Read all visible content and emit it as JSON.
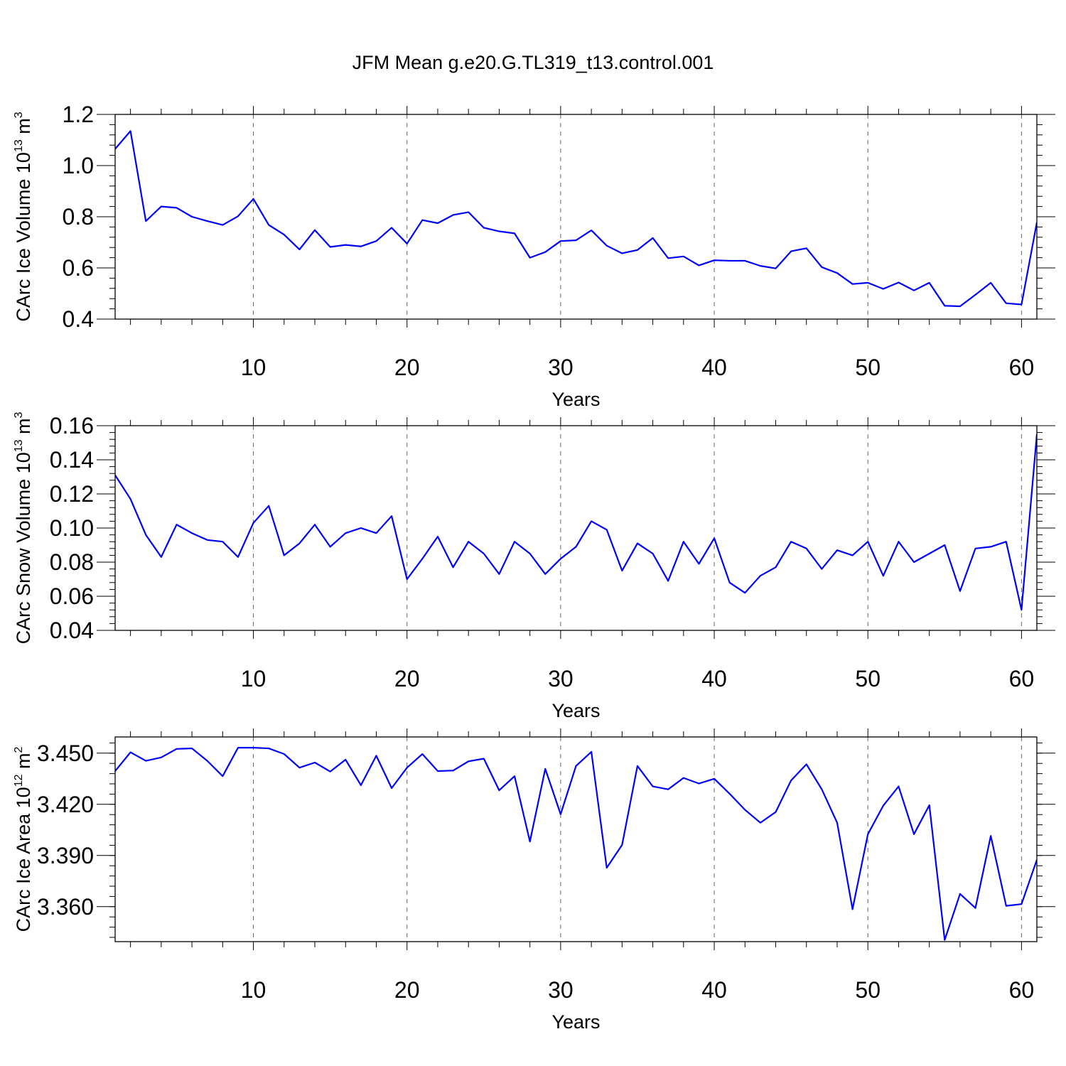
{
  "title": "JFM Mean g.e20.G.TL319_t13.control.001",
  "line_color": "#0000ff",
  "chart_data": [
    {
      "type": "line",
      "ylabel": "CArc Ice Volume",
      "ylabel_unit": "10",
      "ylabel_unit_exp": "13",
      "ylabel_unit_tail": " m",
      "ylabel_unit_tail_exp": "3",
      "xlabel": "Years",
      "xlim": [
        1,
        61
      ],
      "ylim": [
        0.4,
        1.2
      ],
      "x_ticks": [
        10,
        20,
        30,
        40,
        50,
        60
      ],
      "y_ticks": [
        "0.4",
        "0.6",
        "0.8",
        "1.0",
        "1.2"
      ],
      "y_minor_step": 0.04,
      "grid_x": true,
      "series": [
        {
          "x": [
            1,
            2,
            3,
            4,
            5,
            6,
            7,
            8,
            9,
            10,
            11,
            12,
            13,
            14,
            15,
            16,
            17,
            18,
            19,
            20,
            21,
            22,
            23,
            24,
            25,
            26,
            27,
            28,
            29,
            30,
            31,
            32,
            33,
            34,
            35,
            36,
            37,
            38,
            39,
            40,
            41,
            42,
            43,
            44,
            45,
            46,
            47,
            48,
            49,
            50,
            51,
            52,
            53,
            54,
            55,
            56,
            57,
            58,
            59,
            60,
            61
          ],
          "values": [
            1.065,
            1.135,
            0.783,
            0.84,
            0.835,
            0.8,
            0.783,
            0.768,
            0.802,
            0.87,
            0.768,
            0.73,
            0.672,
            0.748,
            0.682,
            0.69,
            0.684,
            0.705,
            0.757,
            0.695,
            0.787,
            0.775,
            0.807,
            0.818,
            0.757,
            0.743,
            0.735,
            0.64,
            0.662,
            0.705,
            0.708,
            0.747,
            0.687,
            0.657,
            0.67,
            0.717,
            0.638,
            0.645,
            0.61,
            0.63,
            0.628,
            0.628,
            0.608,
            0.598,
            0.665,
            0.677,
            0.603,
            0.58,
            0.537,
            0.542,
            0.518,
            0.543,
            0.512,
            0.542,
            0.452,
            0.45,
            0.495,
            0.542,
            0.462,
            0.457,
            0.778
          ]
        }
      ]
    },
    {
      "type": "line",
      "ylabel": "CArc Snow Volume",
      "ylabel_unit": "10",
      "ylabel_unit_exp": "13",
      "ylabel_unit_tail": " m",
      "ylabel_unit_tail_exp": "3",
      "xlabel": "Years",
      "xlim": [
        1,
        61
      ],
      "ylim": [
        0.04,
        0.16
      ],
      "x_ticks": [
        10,
        20,
        30,
        40,
        50,
        60
      ],
      "y_ticks": [
        "0.04",
        "0.06",
        "0.08",
        "0.10",
        "0.12",
        "0.14",
        "0.16"
      ],
      "y_minor_step": 0.004,
      "grid_x": true,
      "series": [
        {
          "x": [
            1,
            2,
            3,
            4,
            5,
            6,
            7,
            8,
            9,
            10,
            11,
            12,
            13,
            14,
            15,
            16,
            17,
            18,
            19,
            20,
            21,
            22,
            23,
            24,
            25,
            26,
            27,
            28,
            29,
            30,
            31,
            32,
            33,
            34,
            35,
            36,
            37,
            38,
            39,
            40,
            41,
            42,
            43,
            44,
            45,
            46,
            47,
            48,
            49,
            50,
            51,
            52,
            53,
            54,
            55,
            56,
            57,
            58,
            59,
            60,
            61
          ],
          "values": [
            0.131,
            0.117,
            0.096,
            0.083,
            0.102,
            0.097,
            0.093,
            0.092,
            0.083,
            0.103,
            0.113,
            0.084,
            0.091,
            0.102,
            0.089,
            0.097,
            0.1,
            0.097,
            0.107,
            0.07,
            0.082,
            0.095,
            0.077,
            0.092,
            0.085,
            0.073,
            0.092,
            0.085,
            0.073,
            0.082,
            0.089,
            0.104,
            0.099,
            0.075,
            0.091,
            0.085,
            0.069,
            0.092,
            0.079,
            0.094,
            0.068,
            0.062,
            0.072,
            0.077,
            0.092,
            0.088,
            0.076,
            0.087,
            0.084,
            0.092,
            0.072,
            0.092,
            0.08,
            0.085,
            0.09,
            0.063,
            0.088,
            0.089,
            0.092,
            0.052,
            0.155
          ]
        }
      ]
    },
    {
      "type": "line",
      "ylabel": "CArc Ice Area",
      "ylabel_unit": "10",
      "ylabel_unit_exp": "12",
      "ylabel_unit_tail": " m",
      "ylabel_unit_tail_exp": "2",
      "xlabel": "Years",
      "xlim": [
        1,
        61
      ],
      "ylim": [
        3.3395,
        3.4595
      ],
      "x_ticks": [
        10,
        20,
        30,
        40,
        50,
        60
      ],
      "y_ticks": [
        "3.360",
        "3.390",
        "3.420",
        "3.450"
      ],
      "y_minor_step": 0.006,
      "grid_x": true,
      "series": [
        {
          "x": [
            1,
            2,
            3,
            4,
            5,
            6,
            7,
            8,
            9,
            10,
            11,
            12,
            13,
            14,
            15,
            16,
            17,
            18,
            19,
            20,
            21,
            22,
            23,
            24,
            25,
            26,
            27,
            28,
            29,
            30,
            31,
            32,
            33,
            34,
            35,
            36,
            37,
            38,
            39,
            40,
            41,
            42,
            43,
            44,
            45,
            46,
            47,
            48,
            49,
            50,
            51,
            52,
            53,
            54,
            55,
            56,
            57,
            58,
            59,
            60,
            61
          ],
          "values": [
            3.4395,
            3.4505,
            3.4455,
            3.4475,
            3.4525,
            3.4528,
            3.4455,
            3.4365,
            3.4532,
            3.4532,
            3.4528,
            3.4495,
            3.4415,
            3.4445,
            3.4392,
            3.4462,
            3.4312,
            3.4485,
            3.4295,
            3.4415,
            3.4495,
            3.4395,
            3.4398,
            3.4452,
            3.4468,
            3.4282,
            3.4365,
            3.3982,
            3.4408,
            3.4142,
            3.4425,
            3.4508,
            3.3828,
            3.3962,
            3.4425,
            3.4305,
            3.4288,
            3.4355,
            3.4322,
            3.435,
            3.4262,
            3.4168,
            3.4092,
            3.4155,
            3.434,
            3.4435,
            3.4288,
            3.4092,
            3.3585,
            3.4025,
            3.4192,
            3.4305,
            3.4025,
            3.4195,
            3.3405,
            3.3675,
            3.3592,
            3.4015,
            3.3605,
            3.3615,
            3.3875
          ]
        }
      ]
    }
  ]
}
